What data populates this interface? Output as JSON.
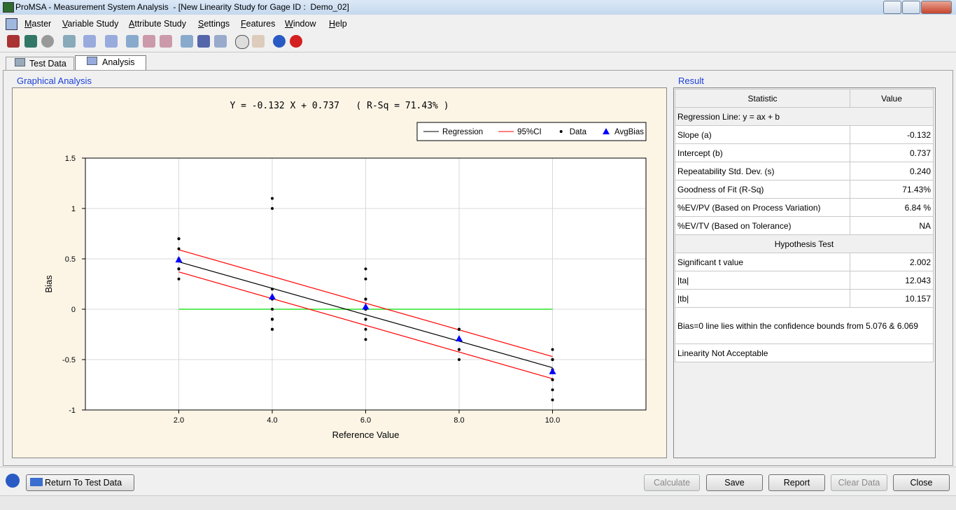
{
  "window": {
    "title": "ProMSA - Measurement System Analysis  - [New Linearity Study for Gage ID :  Demo_02]"
  },
  "menu": [
    "Master",
    "Variable Study",
    "Attribute Study",
    "Settings",
    "Features",
    "Window",
    "Help"
  ],
  "tabs": [
    "Test Data",
    "Analysis"
  ],
  "panels": {
    "graph": "Graphical Analysis",
    "result": "Result"
  },
  "chart_data": {
    "type": "scatter",
    "title": "Y = -0.132 X + 0.737   ( R-Sq = 71.43% )",
    "x_label": "Reference Value",
    "y_label": "Bias",
    "xlim": [
      0,
      12
    ],
    "ylim": [
      -1,
      1.5
    ],
    "xticks": [
      {
        "value": 2,
        "label": "2.0"
      },
      {
        "value": 4,
        "label": "4.0"
      },
      {
        "value": 6,
        "label": "6.0"
      },
      {
        "value": 8,
        "label": "8.0"
      },
      {
        "value": 10,
        "label": "10.0"
      }
    ],
    "yticks": [
      -1,
      -0.5,
      0,
      0.5,
      1,
      1.5
    ],
    "grid": true,
    "series": [
      {
        "name": "Regression",
        "kind": "line",
        "color": "#000000",
        "x": [
          2,
          10
        ],
        "values": [
          0.47,
          -0.58
        ]
      },
      {
        "name": "95%CI",
        "kind": "band",
        "color": "#ff0000",
        "x": [
          2,
          10
        ],
        "upper": [
          0.59,
          -0.47
        ],
        "lower": [
          0.37,
          -0.69
        ]
      },
      {
        "name": "Data",
        "kind": "dot",
        "color": "#000000",
        "x": [
          2,
          2,
          2,
          2,
          2,
          2,
          2,
          2,
          2,
          2,
          2,
          2,
          4,
          4,
          4,
          4,
          4,
          4,
          4,
          4,
          4,
          4,
          4,
          4,
          6,
          6,
          6,
          6,
          6,
          6,
          6,
          6,
          6,
          6,
          6,
          6,
          8,
          8,
          8,
          8,
          8,
          8,
          8,
          8,
          8,
          8,
          8,
          8,
          10,
          10,
          10,
          10,
          10,
          10,
          10,
          10,
          10,
          10,
          10,
          10
        ],
        "values": [
          0.7,
          0.5,
          0.4,
          0.5,
          0.7,
          0.3,
          0.5,
          0.5,
          0.4,
          0.4,
          0.6,
          0.4,
          1.1,
          -0.1,
          0.2,
          1.0,
          -0.2,
          -0.1,
          -0.1,
          -0.1,
          -0.1,
          0,
          0.1,
          -0.2,
          -0.2,
          -0.3,
          -0.1,
          -0.1,
          0,
          0.1,
          0,
          0.1,
          0.4,
          0.3,
          0,
          0.1,
          -0.4,
          -0.3,
          -0.2,
          -0.3,
          -0.2,
          -0.2,
          -0.2,
          -0.3,
          -0.2,
          -0.5,
          -0.4,
          -0.3,
          -0.9,
          -0.7,
          -0.5,
          -0.7,
          -0.6,
          -0.5,
          -0.5,
          -0.5,
          -0.4,
          -0.8,
          -0.7,
          -0.6
        ]
      },
      {
        "name": "AvgBias",
        "kind": "triangle",
        "color": "#0000ff",
        "x": [
          2,
          4,
          6,
          8,
          10
        ],
        "values": [
          0.492,
          0.125,
          0.025,
          -0.292,
          -0.617
        ]
      }
    ],
    "reference_line": {
      "color": "#00dd00",
      "x": [
        2,
        10
      ],
      "values": [
        0,
        0
      ]
    }
  },
  "result": {
    "header": [
      "Statistic",
      "Value"
    ],
    "rows": [
      [
        "Regression Line: y = ax + b"
      ],
      [
        "Slope (a)",
        "-0.132"
      ],
      [
        "Intercept (b)",
        "0.737"
      ],
      [
        "Repeatability Std. Dev. (s)",
        "0.240"
      ],
      [
        "Goodness of Fit (R-Sq)",
        "71.43%"
      ],
      [
        "%EV/PV (Based  on Process Variation)",
        "6.84 %"
      ],
      [
        "%EV/TV (Based on Tolerance)",
        "NA"
      ],
      [
        "Hypothesis Test"
      ],
      [
        "Significant t value",
        "2.002"
      ],
      [
        "|ta|",
        "12.043"
      ],
      [
        "|tb|",
        "10.157"
      ],
      [
        "Bias=0 line lies within the confidence bounds from 5.076  & 6.069"
      ],
      [
        "Linearity Not Acceptable"
      ]
    ]
  },
  "buttons": [
    "Return To Test Data",
    "Calculate",
    "Save",
    "Report",
    "Clear Data",
    "Close"
  ]
}
